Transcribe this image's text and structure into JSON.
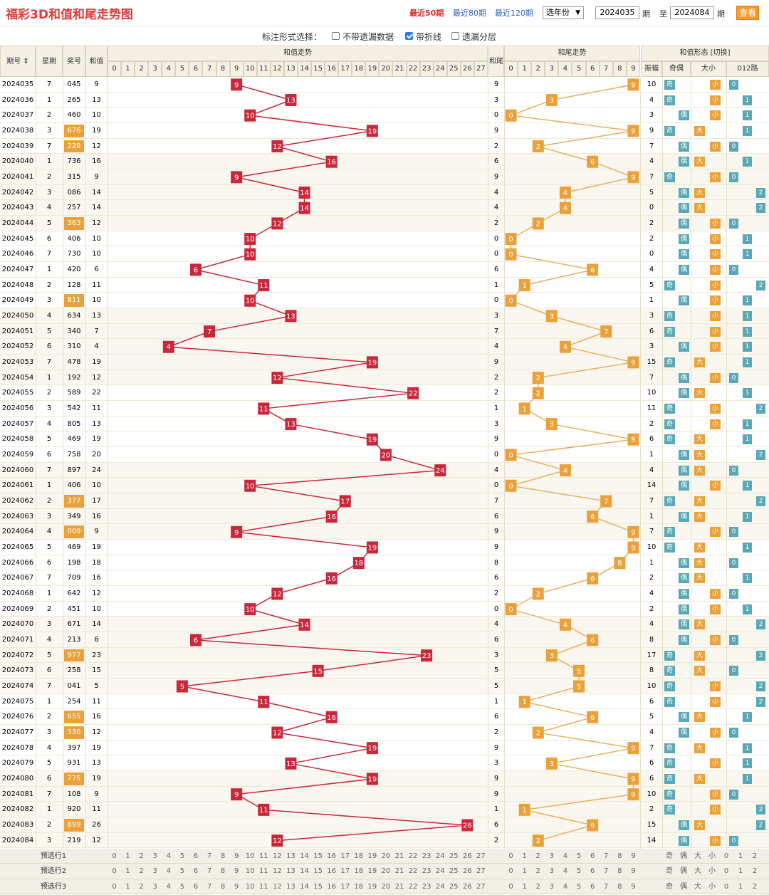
{
  "header": {
    "title": "福彩3D和值和尾走势图",
    "range_links": [
      "最近50期",
      "最近80期",
      "最近120期"
    ],
    "active_range": 0,
    "year_select": "选年份",
    "from_period": "2024035",
    "period_label": "期",
    "to_label": "至",
    "to_period": "2024084",
    "query_button": "查看"
  },
  "options": {
    "label": "标注形式选择：",
    "items": [
      {
        "label": "不带遗漏数据",
        "checked": false
      },
      {
        "label": "带折线",
        "checked": true
      },
      {
        "label": "遗漏分层",
        "checked": false
      }
    ]
  },
  "table": {
    "col_headers": {
      "period": "期号 ⇕",
      "week": "星期",
      "prize": "奖号",
      "sum": "和值",
      "sum_trend": "和值走势",
      "tail": "和尾",
      "tail_trend": "和尾走势",
      "form": "和值形态 [切换]",
      "amp": "振幅",
      "odd_even": "奇偶",
      "big_small": "大小",
      "road": "012路"
    },
    "sum_numbers": [
      "0",
      "1",
      "2",
      "3",
      "4",
      "5",
      "6",
      "7",
      "8",
      "9",
      "10",
      "11",
      "12",
      "13",
      "14",
      "15",
      "16",
      "17",
      "18",
      "19",
      "20",
      "21",
      "22",
      "23",
      "24",
      "25",
      "26",
      "27"
    ],
    "tail_numbers": [
      "0",
      "1",
      "2",
      "3",
      "4",
      "5",
      "6",
      "7",
      "8",
      "9"
    ],
    "form_labels": [
      "奇",
      "偶",
      "大",
      "小",
      "0",
      "1",
      "2"
    ],
    "rows": [
      {
        "period": "2024035",
        "week": "7",
        "prize": "045",
        "sum": "9",
        "tail": "9",
        "amp": "10",
        "oe": "奇",
        "bs": "小",
        "road": "0",
        "hl": false
      },
      {
        "period": "2024036",
        "week": "1",
        "prize": "265",
        "sum": "13",
        "tail": "3",
        "amp": "4",
        "oe": "奇",
        "bs": "小",
        "road": "1",
        "hl": false
      },
      {
        "period": "2024037",
        "week": "2",
        "prize": "460",
        "sum": "10",
        "tail": "0",
        "amp": "3",
        "oe": "偶",
        "bs": "小",
        "road": "1",
        "hl": false
      },
      {
        "period": "2024038",
        "week": "3",
        "prize": "676",
        "sum": "19",
        "tail": "9",
        "amp": "9",
        "oe": "奇",
        "bs": "大",
        "road": "1",
        "hl": true
      },
      {
        "period": "2024039",
        "week": "7",
        "prize": "228",
        "sum": "12",
        "tail": "2",
        "amp": "7",
        "oe": "偶",
        "bs": "小",
        "road": "0",
        "hl": true
      },
      {
        "period": "2024040",
        "week": "1",
        "prize": "736",
        "sum": "16",
        "tail": "6",
        "amp": "4",
        "oe": "偶",
        "bs": "大",
        "road": "1",
        "hl": false
      },
      {
        "period": "2024041",
        "week": "2",
        "prize": "315",
        "sum": "9",
        "tail": "9",
        "amp": "7",
        "oe": "奇",
        "bs": "小",
        "road": "0",
        "hl": false
      },
      {
        "period": "2024042",
        "week": "3",
        "prize": "086",
        "sum": "14",
        "tail": "4",
        "amp": "5",
        "oe": "偶",
        "bs": "大",
        "road": "2",
        "hl": false
      },
      {
        "period": "2024043",
        "week": "4",
        "prize": "257",
        "sum": "14",
        "tail": "4",
        "amp": "0",
        "oe": "偶",
        "bs": "大",
        "road": "2",
        "hl": false
      },
      {
        "period": "2024044",
        "week": "5",
        "prize": "363",
        "sum": "12",
        "tail": "2",
        "amp": "2",
        "oe": "偶",
        "bs": "小",
        "road": "0",
        "hl": true
      },
      {
        "period": "2024045",
        "week": "6",
        "prize": "406",
        "sum": "10",
        "tail": "0",
        "amp": "2",
        "oe": "偶",
        "bs": "小",
        "road": "1",
        "hl": false
      },
      {
        "period": "2024046",
        "week": "7",
        "prize": "730",
        "sum": "10",
        "tail": "0",
        "amp": "0",
        "oe": "偶",
        "bs": "小",
        "road": "1",
        "hl": false
      },
      {
        "period": "2024047",
        "week": "1",
        "prize": "420",
        "sum": "6",
        "tail": "6",
        "amp": "4",
        "oe": "偶",
        "bs": "小",
        "road": "0",
        "hl": false
      },
      {
        "period": "2024048",
        "week": "2",
        "prize": "128",
        "sum": "11",
        "tail": "1",
        "amp": "5",
        "oe": "奇",
        "bs": "小",
        "road": "2",
        "hl": false
      },
      {
        "period": "2024049",
        "week": "3",
        "prize": "811",
        "sum": "10",
        "tail": "0",
        "amp": "1",
        "oe": "偶",
        "bs": "小",
        "road": "1",
        "hl": true
      },
      {
        "period": "2024050",
        "week": "4",
        "prize": "634",
        "sum": "13",
        "tail": "3",
        "amp": "3",
        "oe": "奇",
        "bs": "小",
        "road": "1",
        "hl": false
      },
      {
        "period": "2024051",
        "week": "5",
        "prize": "340",
        "sum": "7",
        "tail": "7",
        "amp": "6",
        "oe": "奇",
        "bs": "小",
        "road": "1",
        "hl": false
      },
      {
        "period": "2024052",
        "week": "6",
        "prize": "310",
        "sum": "4",
        "tail": "4",
        "amp": "3",
        "oe": "偶",
        "bs": "小",
        "road": "1",
        "hl": false
      },
      {
        "period": "2024053",
        "week": "7",
        "prize": "478",
        "sum": "19",
        "tail": "9",
        "amp": "15",
        "oe": "奇",
        "bs": "大",
        "road": "1",
        "hl": false
      },
      {
        "period": "2024054",
        "week": "1",
        "prize": "192",
        "sum": "12",
        "tail": "2",
        "amp": "7",
        "oe": "偶",
        "bs": "小",
        "road": "0",
        "hl": false
      },
      {
        "period": "2024055",
        "week": "2",
        "prize": "589",
        "sum": "22",
        "tail": "2",
        "amp": "10",
        "oe": "偶",
        "bs": "大",
        "road": "1",
        "hl": false
      },
      {
        "period": "2024056",
        "week": "3",
        "prize": "542",
        "sum": "11",
        "tail": "1",
        "amp": "11",
        "oe": "奇",
        "bs": "小",
        "road": "2",
        "hl": false
      },
      {
        "period": "2024057",
        "week": "4",
        "prize": "805",
        "sum": "13",
        "tail": "3",
        "amp": "2",
        "oe": "奇",
        "bs": "小",
        "road": "1",
        "hl": false
      },
      {
        "period": "2024058",
        "week": "5",
        "prize": "469",
        "sum": "19",
        "tail": "9",
        "amp": "6",
        "oe": "奇",
        "bs": "大",
        "road": "1",
        "hl": false
      },
      {
        "period": "2024059",
        "week": "6",
        "prize": "758",
        "sum": "20",
        "tail": "0",
        "amp": "1",
        "oe": "偶",
        "bs": "大",
        "road": "2",
        "hl": false
      },
      {
        "period": "2024060",
        "week": "7",
        "prize": "897",
        "sum": "24",
        "tail": "4",
        "amp": "4",
        "oe": "偶",
        "bs": "大",
        "road": "0",
        "hl": false
      },
      {
        "period": "2024061",
        "week": "1",
        "prize": "406",
        "sum": "10",
        "tail": "0",
        "amp": "14",
        "oe": "偶",
        "bs": "小",
        "road": "1",
        "hl": false
      },
      {
        "period": "2024062",
        "week": "2",
        "prize": "377",
        "sum": "17",
        "tail": "7",
        "amp": "7",
        "oe": "奇",
        "bs": "大",
        "road": "2",
        "hl": true
      },
      {
        "period": "2024063",
        "week": "3",
        "prize": "349",
        "sum": "16",
        "tail": "6",
        "amp": "1",
        "oe": "偶",
        "bs": "大",
        "road": "1",
        "hl": false
      },
      {
        "period": "2024064",
        "week": "4",
        "prize": "009",
        "sum": "9",
        "tail": "9",
        "amp": "7",
        "oe": "奇",
        "bs": "小",
        "road": "0",
        "hl": true
      },
      {
        "period": "2024065",
        "week": "5",
        "prize": "469",
        "sum": "19",
        "tail": "9",
        "amp": "10",
        "oe": "奇",
        "bs": "大",
        "road": "1",
        "hl": false
      },
      {
        "period": "2024066",
        "week": "6",
        "prize": "198",
        "sum": "18",
        "tail": "8",
        "amp": "1",
        "oe": "偶",
        "bs": "大",
        "road": "0",
        "hl": false
      },
      {
        "period": "2024067",
        "week": "7",
        "prize": "709",
        "sum": "16",
        "tail": "6",
        "amp": "2",
        "oe": "偶",
        "bs": "大",
        "road": "1",
        "hl": false
      },
      {
        "period": "2024068",
        "week": "1",
        "prize": "642",
        "sum": "12",
        "tail": "2",
        "amp": "4",
        "oe": "偶",
        "bs": "小",
        "road": "0",
        "hl": false
      },
      {
        "period": "2024069",
        "week": "2",
        "prize": "451",
        "sum": "10",
        "tail": "0",
        "amp": "2",
        "oe": "偶",
        "bs": "小",
        "road": "1",
        "hl": false
      },
      {
        "period": "2024070",
        "week": "3",
        "prize": "671",
        "sum": "14",
        "tail": "4",
        "amp": "4",
        "oe": "偶",
        "bs": "大",
        "road": "2",
        "hl": false
      },
      {
        "period": "2024071",
        "week": "4",
        "prize": "213",
        "sum": "6",
        "tail": "6",
        "amp": "8",
        "oe": "偶",
        "bs": "小",
        "road": "0",
        "hl": false
      },
      {
        "period": "2024072",
        "week": "5",
        "prize": "977",
        "sum": "23",
        "tail": "3",
        "amp": "17",
        "oe": "奇",
        "bs": "大",
        "road": "2",
        "hl": true
      },
      {
        "period": "2024073",
        "week": "6",
        "prize": "258",
        "sum": "15",
        "tail": "5",
        "amp": "8",
        "oe": "奇",
        "bs": "大",
        "road": "0",
        "hl": false
      },
      {
        "period": "2024074",
        "week": "7",
        "prize": "041",
        "sum": "5",
        "tail": "5",
        "amp": "10",
        "oe": "奇",
        "bs": "小",
        "road": "2",
        "hl": false
      },
      {
        "period": "2024075",
        "week": "1",
        "prize": "254",
        "sum": "11",
        "tail": "1",
        "amp": "6",
        "oe": "奇",
        "bs": "小",
        "road": "2",
        "hl": false
      },
      {
        "period": "2024076",
        "week": "2",
        "prize": "655",
        "sum": "16",
        "tail": "6",
        "amp": "5",
        "oe": "偶",
        "bs": "大",
        "road": "1",
        "hl": true
      },
      {
        "period": "2024077",
        "week": "3",
        "prize": "336",
        "sum": "12",
        "tail": "2",
        "amp": "4",
        "oe": "偶",
        "bs": "小",
        "road": "0",
        "hl": true
      },
      {
        "period": "2024078",
        "week": "4",
        "prize": "397",
        "sum": "19",
        "tail": "9",
        "amp": "7",
        "oe": "奇",
        "bs": "大",
        "road": "1",
        "hl": false
      },
      {
        "period": "2024079",
        "week": "5",
        "prize": "931",
        "sum": "13",
        "tail": "3",
        "amp": "6",
        "oe": "奇",
        "bs": "小",
        "road": "1",
        "hl": false
      },
      {
        "period": "2024080",
        "week": "6",
        "prize": "775",
        "sum": "19",
        "tail": "9",
        "amp": "6",
        "oe": "奇",
        "bs": "大",
        "road": "1",
        "hl": true
      },
      {
        "period": "2024081",
        "week": "7",
        "prize": "108",
        "sum": "9",
        "tail": "9",
        "amp": "10",
        "oe": "奇",
        "bs": "小",
        "road": "0",
        "hl": false
      },
      {
        "period": "2024082",
        "week": "1",
        "prize": "920",
        "sum": "11",
        "tail": "1",
        "amp": "2",
        "oe": "奇",
        "bs": "小",
        "road": "2",
        "hl": false
      },
      {
        "period": "2024083",
        "week": "2",
        "prize": "899",
        "sum": "26",
        "tail": "6",
        "amp": "15",
        "oe": "偶",
        "bs": "大",
        "road": "2",
        "hl": true
      },
      {
        "period": "2024084",
        "week": "3",
        "prize": "219",
        "sum": "12",
        "tail": "2",
        "amp": "14",
        "oe": "偶",
        "bs": "小",
        "road": "0",
        "hl": false
      }
    ],
    "footer_rows": [
      "预选行1",
      "预选行2",
      "预选行3"
    ]
  },
  "colors": {
    "sum_ball": "#c8283c",
    "tail_ball": "#e9a23b",
    "sum_line": "#c8283c",
    "tail_line": "#e7b060",
    "header_bg": "#f4f0e4",
    "prize_highlight": "#e9a23b",
    "odd": "#5aa8b5",
    "even": "#5aa8b5",
    "big": "#e9a23b",
    "small": "#e9a23b",
    "road": "#5aa8b5",
    "miss_text": "#d9a0a0"
  }
}
